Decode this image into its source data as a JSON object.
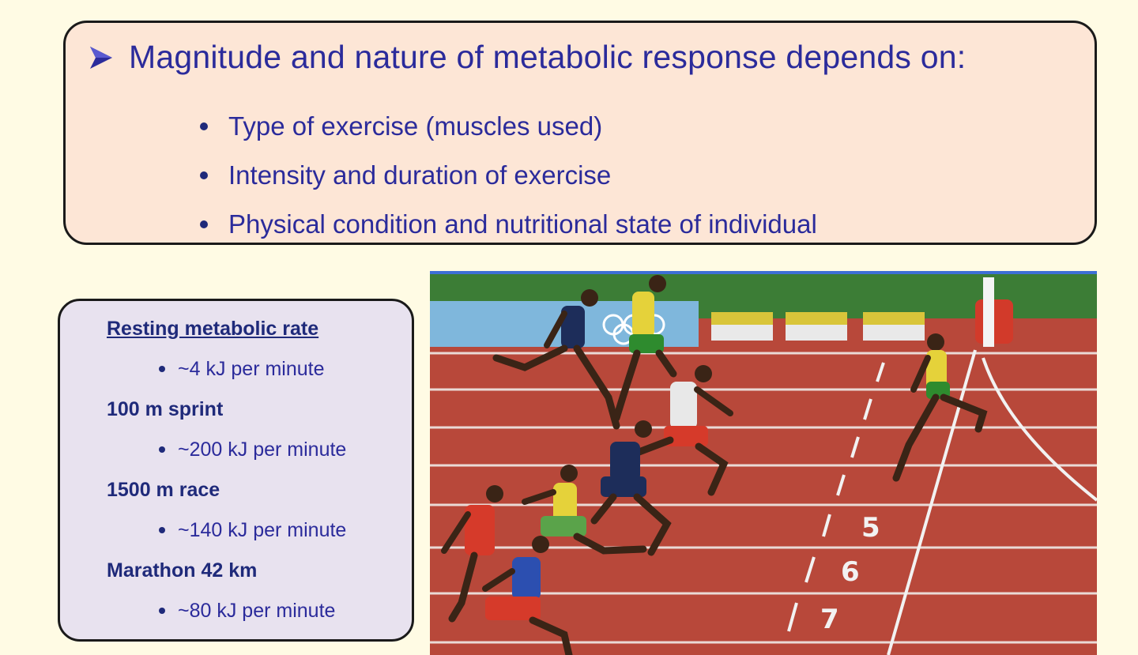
{
  "top_box": {
    "heading": "Magnitude and nature of metabolic response depends on:",
    "bullets": [
      "Type of exercise (muscles used)",
      "Intensity and duration of exercise",
      "Physical condition and nutritional state of individual"
    ]
  },
  "metabolic_rates": [
    {
      "label": "Resting metabolic rate",
      "value": "~4 kJ per minute"
    },
    {
      "label": "100 m sprint",
      "value": "~200 kJ per minute"
    },
    {
      "label": "1500 m race",
      "value": "~140 kJ per minute"
    },
    {
      "label": "Marathon 42 km",
      "value": "~80 kJ per minute"
    }
  ],
  "photo": {
    "lane_numbers": [
      "5",
      "6",
      "7"
    ]
  },
  "colors": {
    "background": "#fffbe4",
    "top_box_fill": "#fde6d6",
    "left_box_fill": "#e8e2ef",
    "text_blue": "#2b2b9b",
    "track_red": "#b8483a"
  }
}
